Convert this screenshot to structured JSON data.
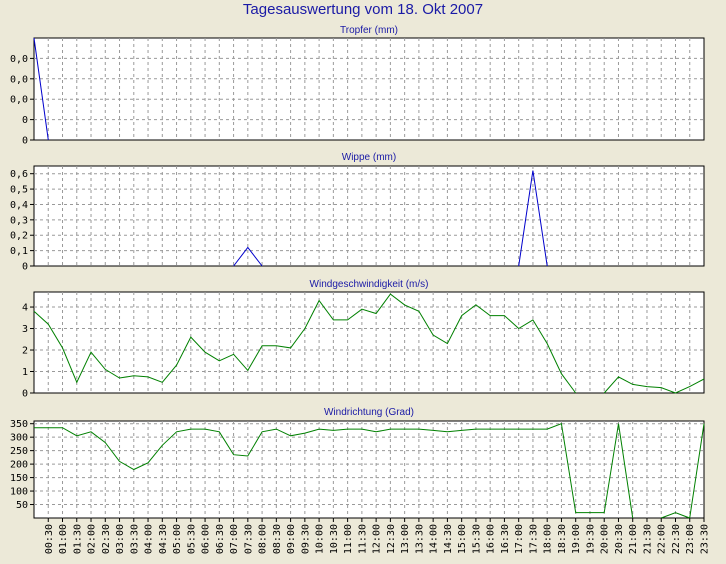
{
  "title": "Tagesauswertung vom 18. Okt 2007",
  "chart_data": {
    "type": "line",
    "x_labels": [
      "00:30",
      "01:00",
      "01:30",
      "02:00",
      "02:30",
      "03:00",
      "03:30",
      "04:00",
      "04:30",
      "05:00",
      "05:30",
      "06:00",
      "06:30",
      "07:00",
      "07:30",
      "08:00",
      "08:30",
      "09:00",
      "09:30",
      "10:00",
      "10:30",
      "11:00",
      "11:30",
      "12:00",
      "12:30",
      "13:00",
      "13:30",
      "14:00",
      "14:30",
      "15:00",
      "15:30",
      "16:00",
      "16:30",
      "17:00",
      "17:30",
      "18:00",
      "18:30",
      "19:00",
      "19:30",
      "20:00",
      "20:30",
      "21:00",
      "21:30",
      "22:00",
      "22:30",
      "23:00",
      "23:30"
    ],
    "grid": true,
    "panels": [
      {
        "name": "tropfer",
        "title": "Tropfer (mm)",
        "color": "#0000cc",
        "ylim": [
          0,
          0.05
        ],
        "yticks": [
          0.0,
          0.01,
          0.02,
          0.03,
          0.04
        ],
        "ytick_labels": [
          "0",
          "0",
          "0,0",
          "0,0",
          "0,0"
        ],
        "x": [
          0.0,
          0.5
        ],
        "values": [
          0.05,
          0.0
        ]
      },
      {
        "name": "wippe",
        "title": "Wippe (mm)",
        "color": "#0000cc",
        "ylim": [
          0,
          0.65
        ],
        "yticks": [
          0,
          0.1,
          0.2,
          0.3,
          0.4,
          0.5,
          0.6
        ],
        "ytick_labels": [
          "0",
          "0,1",
          "0,2",
          "0,3",
          "0,4",
          "0,5",
          "0,6"
        ],
        "segments": [
          {
            "x": [
              7.0,
              7.5,
              8.0
            ],
            "values": [
              0,
              0.12,
              0
            ]
          },
          {
            "x": [
              17.0,
              17.5,
              18.0
            ],
            "values": [
              0,
              0.62,
              0
            ]
          }
        ]
      },
      {
        "name": "windgeschwindigkeit",
        "title": "Windgeschwindigkeit (m/s)",
        "color": "#008000",
        "ylim": [
          0,
          4.7
        ],
        "yticks": [
          0,
          1,
          2,
          3,
          4
        ],
        "ytick_labels": [
          "0",
          "1",
          "2",
          "3",
          "4"
        ],
        "segments": [
          {
            "x": [
              0.0,
              0.5,
              1.0,
              1.5,
              2.0,
              2.5,
              3.0,
              3.5,
              4.0,
              4.5,
              5.0,
              5.5,
              6.0,
              6.5,
              7.0,
              7.5,
              8.0,
              8.5,
              9.0,
              9.5,
              10.0,
              10.5,
              11.0,
              11.5,
              12.0,
              12.5,
              13.0,
              13.5,
              14.0,
              14.5,
              15.0,
              15.5,
              16.0,
              16.5,
              17.0,
              17.5,
              18.0,
              18.5,
              19.0
            ],
            "values": [
              3.8,
              3.2,
              2.1,
              0.5,
              1.9,
              1.1,
              0.7,
              0.8,
              0.75,
              0.5,
              1.3,
              2.6,
              1.9,
              1.5,
              1.8,
              1.05,
              2.2,
              2.2,
              2.1,
              3.0,
              4.3,
              3.4,
              3.4,
              3.9,
              3.7,
              4.6,
              4.1,
              3.8,
              2.7,
              2.3,
              3.6,
              4.1,
              3.6,
              3.6,
              3.0,
              3.4,
              2.3,
              0.9,
              0.0
            ]
          },
          {
            "x": [
              20.0,
              20.5,
              21.0,
              21.5,
              22.0,
              22.5,
              23.0,
              23.5
            ],
            "values": [
              0.0,
              0.75,
              0.4,
              0.3,
              0.25,
              0.0,
              0.3,
              0.65
            ]
          }
        ]
      },
      {
        "name": "windrichtung",
        "title": "Windrichtung (Grad)",
        "color": "#008000",
        "ylim": [
          0,
          360
        ],
        "yticks": [
          50,
          100,
          150,
          200,
          250,
          300,
          350
        ],
        "ytick_labels": [
          "50",
          "100",
          "150",
          "200",
          "250",
          "300",
          "350"
        ],
        "segments": [
          {
            "x": [
              0.0,
              0.5,
              1.0,
              1.5,
              2.0,
              2.5,
              3.0,
              3.5,
              4.0,
              4.5,
              5.0,
              5.5,
              6.0,
              6.5,
              7.0,
              7.5,
              8.0,
              8.5,
              9.0,
              9.5,
              10.0,
              10.5,
              11.0,
              11.5,
              12.0,
              12.5,
              13.0,
              13.5,
              14.0,
              14.5,
              15.0,
              15.5,
              16.0,
              16.5,
              17.0,
              17.5,
              18.0,
              18.5,
              19.0,
              19.5,
              20.0,
              20.5,
              21.0
            ],
            "values": [
              335,
              335,
              335,
              305,
              320,
              280,
              210,
              180,
              205,
              270,
              320,
              330,
              330,
              320,
              235,
              230,
              320,
              330,
              305,
              315,
              330,
              325,
              330,
              330,
              320,
              330,
              330,
              330,
              325,
              320,
              325,
              330,
              330,
              330,
              330,
              330,
              330,
              350,
              20,
              20,
              20,
              350,
              0
            ]
          },
          {
            "x": [
              22.0,
              22.5,
              23.0,
              23.5
            ],
            "values": [
              0,
              20,
              0,
              350
            ]
          }
        ]
      }
    ]
  }
}
